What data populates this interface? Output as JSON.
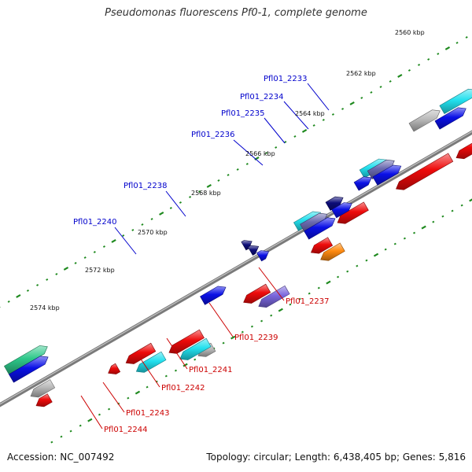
{
  "title": "Pseudomonas fluorescens Pf0-1, complete genome",
  "footer": {
    "accession": "Accession: NC_007492",
    "summary": "Topology: circular; Length: 6,438,405 bp; Genes: 5,816"
  },
  "colors": {
    "backbone": "#7a7a7a",
    "ticks": "#1f8a1f",
    "forward_label": "#0000cc",
    "reverse_label": "#cc0000",
    "blue": "#0a10e6",
    "navy": "#0c0c78",
    "cyan": "#22e0ee",
    "teal_green": "#2ec88a",
    "red": "#ee0a0a",
    "orange": "#ff8a10",
    "gray": "#b8b8b8",
    "lavender": "#7a66dd",
    "slate": "#6a6ab0"
  },
  "scale": {
    "unit": "kbp",
    "ticks": [
      {
        "label": "2560 kbp"
      },
      {
        "label": "2562 kbp"
      },
      {
        "label": "2564 kbp"
      },
      {
        "label": "2566 kbp"
      },
      {
        "label": "2568 kbp"
      },
      {
        "label": "2570 kbp"
      },
      {
        "label": "2572 kbp"
      },
      {
        "label": "2574 kbp"
      }
    ]
  },
  "labels": [
    {
      "text": "Pfl01_2233",
      "strand": "forward"
    },
    {
      "text": "Pfl01_2234",
      "strand": "forward"
    },
    {
      "text": "Pfl01_2235",
      "strand": "forward"
    },
    {
      "text": "Pfl01_2236",
      "strand": "forward"
    },
    {
      "text": "Pfl01_2238",
      "strand": "forward"
    },
    {
      "text": "Pfl01_2240",
      "strand": "forward"
    },
    {
      "text": "Pfl01_2237",
      "strand": "reverse"
    },
    {
      "text": "Pfl01_2239",
      "strand": "reverse"
    },
    {
      "text": "Pfl01_2241",
      "strand": "reverse"
    },
    {
      "text": "Pfl01_2242",
      "strand": "reverse"
    },
    {
      "text": "Pfl01_2243",
      "strand": "reverse"
    },
    {
      "text": "Pfl01_2244",
      "strand": "reverse"
    }
  ]
}
